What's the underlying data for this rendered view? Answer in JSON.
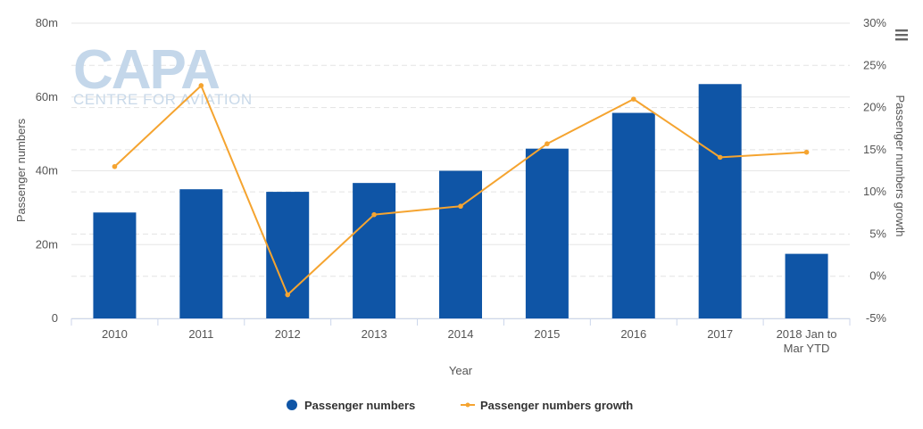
{
  "watermark": {
    "logo": "CAPA",
    "tagline": "CENTRE FOR AVIATION"
  },
  "chart_data": {
    "type": "bar",
    "title": "",
    "xlabel": "Year",
    "ylabel": "Passenger numbers",
    "y2label": "Passenger numbers growth",
    "categories": [
      "2010",
      "2011",
      "2012",
      "2013",
      "2014",
      "2015",
      "2016",
      "2017",
      "2018 Jan to Mar YTD"
    ],
    "series": [
      {
        "name": "Passenger numbers",
        "type": "bar",
        "axis": "left",
        "color": "#0f55a6",
        "values": [
          28.7,
          35.0,
          34.3,
          36.7,
          40.0,
          46.0,
          55.7,
          63.5,
          17.5
        ]
      },
      {
        "name": "Passenger numbers growth",
        "type": "line",
        "axis": "right",
        "color": "#f5a430",
        "values": [
          13.0,
          22.6,
          -2.2,
          7.3,
          8.3,
          15.7,
          21.0,
          14.1,
          14.7
        ]
      }
    ],
    "ylim": [
      0,
      80
    ],
    "yticks": [
      0,
      20,
      40,
      60,
      80
    ],
    "ytick_labels": [
      "0",
      "20m",
      "40m",
      "60m",
      "80m"
    ],
    "y2lim": [
      -5,
      30
    ],
    "y2ticks": [
      -5,
      0,
      5,
      10,
      15,
      20,
      25,
      30
    ],
    "y2tick_labels": [
      "-5%",
      "0%",
      "5%",
      "10%",
      "15%",
      "20%",
      "25%",
      "30%"
    ],
    "grid": true,
    "legend_position": "bottom-center"
  },
  "menu": {
    "icon": "hamburger-menu-icon"
  }
}
